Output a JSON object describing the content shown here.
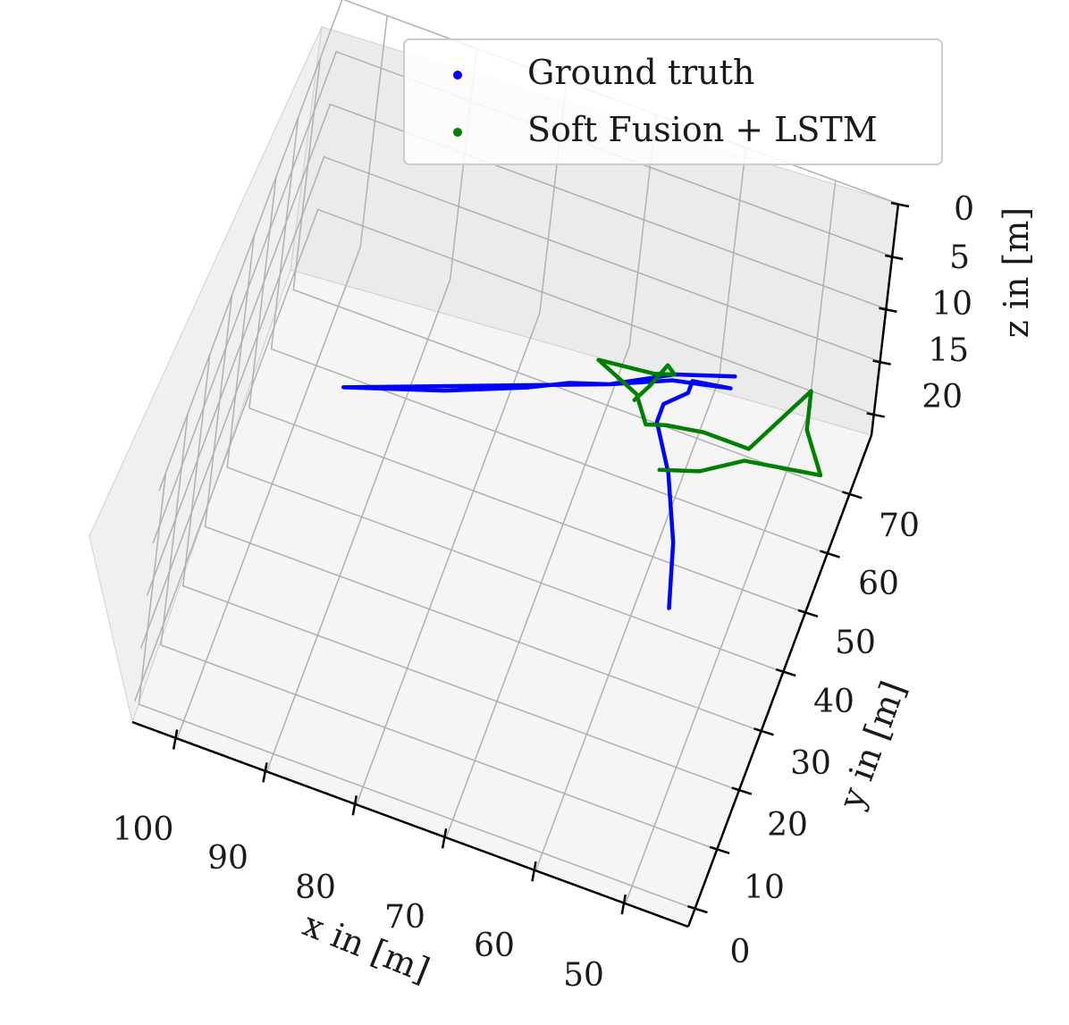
{
  "chart_data": {
    "type": "line",
    "subtype": "3d-trajectory",
    "title": "",
    "xlabel": "x in [m]",
    "ylabel": "y in [m]",
    "zlabel": "z in [m]",
    "x_ticks": [
      "100",
      "90",
      "80",
      "70",
      "60",
      "50"
    ],
    "y_ticks": [
      "0",
      "10",
      "20",
      "30",
      "40",
      "50",
      "60",
      "70"
    ],
    "z_ticks": [
      "0",
      "5",
      "10",
      "15",
      "20"
    ],
    "grid": true,
    "legend_position": "top-right",
    "series": [
      {
        "name": "Ground truth",
        "color": "#0000ff",
        "points": [
          [
            56,
            40,
            20
          ],
          [
            58,
            50,
            20
          ],
          [
            61,
            60,
            20
          ],
          [
            64,
            67,
            20
          ],
          [
            64,
            70,
            20
          ],
          [
            62,
            73,
            20
          ],
          [
            62,
            75,
            20
          ],
          [
            58,
            76,
            20
          ],
          [
            64,
            74,
            20
          ],
          [
            70,
            70,
            20
          ],
          [
            74,
            68,
            20
          ],
          [
            78,
            65,
            20
          ],
          [
            86,
            60,
            20
          ],
          [
            96,
            55,
            20
          ],
          [
            70,
            70,
            20
          ],
          [
            64,
            75,
            20
          ],
          [
            58,
            78,
            20
          ]
        ]
      },
      {
        "name": "Soft Fusion + LSTM",
        "color": "#008000",
        "points": [
          [
            62,
            60,
            20
          ],
          [
            58,
            62,
            20
          ],
          [
            54,
            66,
            20
          ],
          [
            50,
            67,
            20
          ],
          [
            46,
            68,
            20
          ],
          [
            49,
            74,
            20
          ],
          [
            50,
            80,
            20
          ],
          [
            54,
            68,
            20
          ],
          [
            59,
            68,
            20
          ],
          [
            63,
            67,
            20
          ],
          [
            65,
            66,
            20
          ],
          [
            67,
            70,
            20
          ],
          [
            72,
            73,
            20
          ],
          [
            66,
            74,
            20
          ],
          [
            64,
            75,
            20
          ],
          [
            65,
            76,
            20
          ],
          [
            66,
            72,
            20
          ],
          [
            67,
            69,
            20
          ]
        ]
      }
    ]
  }
}
